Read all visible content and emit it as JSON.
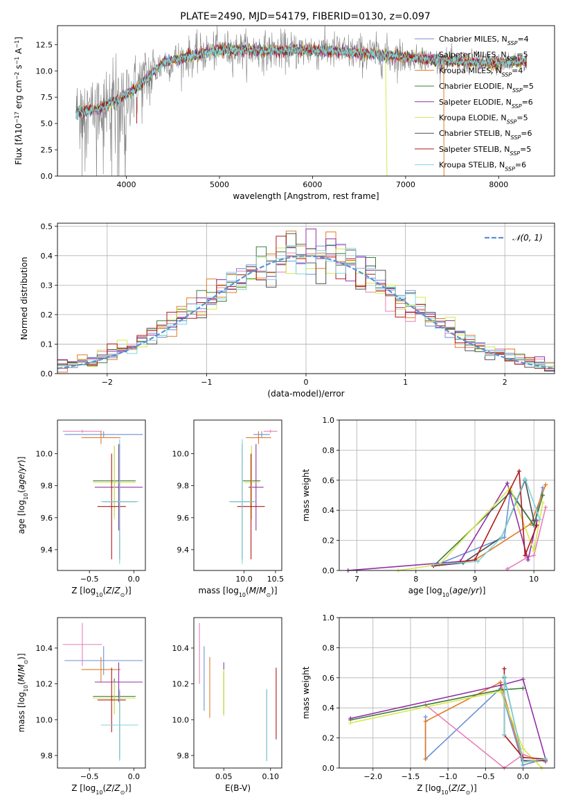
{
  "figure_title": "PLATE=2490, MJD=54179, FIBERID=0130, z=0.097",
  "colors": {
    "Chabrier MILES": "#6b8fd6",
    "Salpeter MILES": "#e87fb8",
    "Kroupa MILES": "#e07b25",
    "Chabrier ELODIE": "#3d7a3d",
    "Salpeter ELODIE": "#9230a8",
    "Kroupa ELODIE": "#d6e84a",
    "Chabrier STELIB": "#4d4d4d",
    "Salpeter STELIB": "#b01818",
    "Kroupa STELIB": "#7fd4d9",
    "normal": "#5b8fd6"
  },
  "chart_data": [
    {
      "id": "spectrum",
      "type": "line",
      "title": "PLATE=2490, MJD=54179, FIBERID=0130, z=0.097",
      "xlabel": "wavelength [Angstrom, rest frame]",
      "ylabel_html": "Flux [f<tspan font-style='italic'>λ</tspan>10<tspan baseline-shift='super' font-size='8'>−17</tspan> erg cm<tspan baseline-shift='super' font-size='8'>−2</tspan> s<tspan baseline-shift='super' font-size='8'>−1</tspan> A<tspan baseline-shift='super' font-size='8'>−1</tspan>]",
      "xlim": [
        3260,
        8600
      ],
      "ylim": [
        0,
        14.3
      ],
      "xticks": [
        4000,
        5000,
        6000,
        7000,
        8000
      ],
      "yticks": [
        0.0,
        2.5,
        5.0,
        7.5,
        10.0,
        12.5
      ],
      "ytick_labels": [
        "0.0",
        "2.5",
        "5.0",
        "7.5",
        "10.0",
        "12.5"
      ],
      "data_range": [
        3460,
        8300
      ],
      "continuum": [
        [
          3460,
          6.0
        ],
        [
          3700,
          6.4
        ],
        [
          3900,
          7.2
        ],
        [
          4100,
          8.3
        ],
        [
          4400,
          10.8
        ],
        [
          4700,
          11.4
        ],
        [
          5000,
          12.0
        ],
        [
          5500,
          11.9
        ],
        [
          6000,
          12.0
        ],
        [
          6500,
          11.7
        ],
        [
          7000,
          11.3
        ],
        [
          7500,
          10.9
        ],
        [
          8000,
          10.7
        ],
        [
          8300,
          10.9
        ]
      ],
      "legend": [
        {
          "label": "Chabrier MILES",
          "sub": "N<tspan baseline-shift='sub' font-size='8' font-style='italic'>SSP</tspan>=4"
        },
        {
          "label": "Salpeter MILES",
          "sub": "N<tspan baseline-shift='sub' font-size='8' font-style='italic'>SSP</tspan>=5"
        },
        {
          "label": "Kroupa MILES",
          "sub": "N<tspan baseline-shift='sub' font-size='8' font-style='italic'>SSP</tspan>=4"
        },
        {
          "label": "Chabrier ELODIE",
          "sub": "N<tspan baseline-shift='sub' font-size='8' font-style='italic'>SSP</tspan>=5"
        },
        {
          "label": "Salpeter ELODIE",
          "sub": "N<tspan baseline-shift='sub' font-size='8' font-style='italic'>SSP</tspan>=6"
        },
        {
          "label": "Kroupa ELODIE",
          "sub": "N<tspan baseline-shift='sub' font-size='8' font-style='italic'>SSP</tspan>=5"
        },
        {
          "label": "Chabrier STELIB",
          "sub": "N<tspan baseline-shift='sub' font-size='8' font-style='italic'>SSP</tspan>=6"
        },
        {
          "label": "Salpeter STELIB",
          "sub": "N<tspan baseline-shift='sub' font-size='8' font-style='italic'>SSP</tspan>=5"
        },
        {
          "label": "Kroupa STELIB",
          "sub": "N<tspan baseline-shift='sub' font-size='8' font-style='italic'>SSP</tspan>=6"
        }
      ]
    },
    {
      "id": "residuals",
      "type": "histogram",
      "xlabel": "(data-model)/error",
      "ylabel": "Normed distribution",
      "xlim": [
        -2.5,
        2.5
      ],
      "ylim": [
        0,
        0.51
      ],
      "xticks": [
        -2,
        -1,
        0,
        1,
        2
      ],
      "xtick_labels": [
        "−2",
        "−1",
        "0",
        "1",
        "2"
      ],
      "yticks": [
        0.0,
        0.1,
        0.2,
        0.3,
        0.4,
        0.5
      ],
      "ytick_labels": [
        "0.0",
        "0.1",
        "0.2",
        "0.3",
        "0.4",
        "0.5"
      ],
      "bin_width": 0.1,
      "legend_label": "𝒩(0, 1)",
      "grid": true
    },
    {
      "id": "age_vs_Z",
      "type": "errorbar",
      "xlabel": "Z [log<tspan baseline-shift='sub' font-size='8'>10</tspan>(<tspan font-style='italic'>Z</tspan>/<tspan font-style='italic'>Z</tspan><tspan baseline-shift='sub' font-size='8'>⊙</tspan>)]",
      "ylabel": "age  [log<tspan baseline-shift='sub' font-size='8'>10</tspan>(<tspan font-style='italic'>age</tspan>/<tspan font-style='italic'>yr</tspan>)]",
      "xlim": [
        -0.86,
        0.13
      ],
      "ylim": [
        9.27,
        10.21
      ],
      "xticks": [
        -0.5,
        0.0
      ],
      "xtick_labels": [
        "−0.5",
        "0.0"
      ],
      "yticks": [
        9.4,
        9.6,
        9.8,
        10.0
      ],
      "ytick_labels": [
        "9.4",
        "9.6",
        "9.8",
        "10.0"
      ],
      "points": [
        {
          "model": "Chabrier MILES",
          "x": -0.34,
          "xerr": 0.44,
          "y": 10.12,
          "yerr": 0.02
        },
        {
          "model": "Salpeter MILES",
          "x": -0.58,
          "xerr": 0.22,
          "y": 10.14,
          "yerr": 0.01
        },
        {
          "model": "Kroupa MILES",
          "x": -0.37,
          "xerr": 0.22,
          "y": 10.1,
          "yerr": 0.04
        },
        {
          "model": "Chabrier ELODIE",
          "x": -0.22,
          "xerr": 0.24,
          "y": 9.83,
          "yerr": 0.22
        },
        {
          "model": "Salpeter ELODIE",
          "x": -0.17,
          "xerr": 0.27,
          "y": 9.79,
          "yerr": 0.27
        },
        {
          "model": "Kroupa ELODIE",
          "x": -0.22,
          "xerr": 0.24,
          "y": 9.82,
          "yerr": 0.23
        },
        {
          "model": "Chabrier STELIB",
          "x": -0.16,
          "xerr": 0.19,
          "y": 9.7,
          "yerr": 0.36
        },
        {
          "model": "Salpeter STELIB",
          "x": -0.25,
          "xerr": 0.16,
          "y": 9.67,
          "yerr": 0.33
        },
        {
          "model": "Kroupa STELIB",
          "x": -0.16,
          "xerr": 0.21,
          "y": 9.7,
          "yerr": 0.39
        }
      ]
    },
    {
      "id": "age_vs_mass",
      "type": "errorbar",
      "xlabel": "mass [log<tspan baseline-shift='sub' font-size='8'>10</tspan>(<tspan font-style='italic'>M</tspan>/<tspan font-style='italic'>M</tspan><tspan baseline-shift='sub' font-size='8'>⊙</tspan>)]",
      "ylabel": "",
      "xlim": [
        9.2,
        10.6
      ],
      "ylim": [
        9.27,
        10.21
      ],
      "xticks": [
        10.0,
        10.5
      ],
      "xtick_labels": [
        "10.0",
        "10.5"
      ],
      "yticks": [
        9.4,
        9.6,
        9.8,
        10.0
      ],
      "ytick_labels": [
        "9.4",
        "9.6",
        "9.8",
        "10.0"
      ],
      "points": [
        {
          "model": "Chabrier MILES",
          "x": 10.28,
          "xerr": 0.13,
          "y": 10.12,
          "yerr": 0.02
        },
        {
          "model": "Salpeter MILES",
          "x": 10.42,
          "xerr": 0.11,
          "y": 10.14,
          "yerr": 0.01
        },
        {
          "model": "Kroupa MILES",
          "x": 10.23,
          "xerr": 0.2,
          "y": 10.1,
          "yerr": 0.04
        },
        {
          "model": "Chabrier ELODIE",
          "x": 10.12,
          "xerr": 0.14,
          "y": 9.83,
          "yerr": 0.22
        },
        {
          "model": "Salpeter ELODIE",
          "x": 10.19,
          "xerr": 0.12,
          "y": 9.79,
          "yerr": 0.27
        },
        {
          "model": "Kroupa ELODIE",
          "x": 10.12,
          "xerr": 0.12,
          "y": 9.82,
          "yerr": 0.23
        },
        {
          "model": "Chabrier STELIB",
          "x": 9.97,
          "xerr": 0.19,
          "y": 9.7,
          "yerr": 0.36
        },
        {
          "model": "Salpeter STELIB",
          "x": 10.11,
          "xerr": 0.22,
          "y": 9.67,
          "yerr": 0.33
        },
        {
          "model": "Kroupa STELIB",
          "x": 9.97,
          "xerr": 0.21,
          "y": 9.7,
          "yerr": 0.39
        }
      ]
    },
    {
      "id": "mass_vs_Z",
      "type": "errorbar",
      "xlabel": "Z [log<tspan baseline-shift='sub' font-size='8'>10</tspan>(<tspan font-style='italic'>Z</tspan>/<tspan font-style='italic'>Z</tspan><tspan baseline-shift='sub' font-size='8'>⊙</tspan>)]",
      "ylabel": "mass [log<tspan baseline-shift='sub' font-size='8'>10</tspan>(<tspan font-style='italic'>M</tspan>/<tspan font-style='italic'>M</tspan><tspan baseline-shift='sub' font-size='8'>⊙</tspan>)]",
      "xlim": [
        -0.86,
        0.13
      ],
      "ylim": [
        9.73,
        10.57
      ],
      "xticks": [
        -0.5,
        0.0
      ],
      "xtick_labels": [
        "−0.5",
        "0.0"
      ],
      "yticks": [
        9.8,
        10.0,
        10.2,
        10.4
      ],
      "ytick_labels": [
        "9.8",
        "10.0",
        "10.2",
        "10.4"
      ],
      "points": [
        {
          "model": "Chabrier MILES",
          "x": -0.34,
          "xerr": 0.44,
          "y": 10.33,
          "yerr": 0.08
        },
        {
          "model": "Salpeter MILES",
          "x": -0.58,
          "xerr": 0.22,
          "y": 10.42,
          "yerr": 0.12
        },
        {
          "model": "Kroupa MILES",
          "x": -0.37,
          "xerr": 0.22,
          "y": 10.28,
          "yerr": 0.07
        },
        {
          "model": "Chabrier ELODIE",
          "x": -0.22,
          "xerr": 0.24,
          "y": 10.13,
          "yerr": 0.1
        },
        {
          "model": "Salpeter ELODIE",
          "x": -0.17,
          "xerr": 0.27,
          "y": 10.21,
          "yerr": 0.11
        },
        {
          "model": "Kroupa ELODIE",
          "x": -0.22,
          "xerr": 0.24,
          "y": 10.12,
          "yerr": 0.09
        },
        {
          "model": "Chabrier STELIB",
          "x": -0.16,
          "xerr": 0.19,
          "y": 9.97,
          "yerr": 0.19
        },
        {
          "model": "Salpeter STELIB",
          "x": -0.25,
          "xerr": 0.16,
          "y": 10.11,
          "yerr": 0.18
        },
        {
          "model": "Kroupa STELIB",
          "x": -0.16,
          "xerr": 0.21,
          "y": 9.97,
          "yerr": 0.2
        }
      ]
    },
    {
      "id": "mass_vs_ebv",
      "type": "errorbar",
      "xlabel": "E(B-V)",
      "ylabel": "",
      "xlim": [
        0.018,
        0.112
      ],
      "ylim": [
        9.73,
        10.57
      ],
      "xticks": [
        0.05,
        0.1
      ],
      "xtick_labels": [
        "0.05",
        "0.10"
      ],
      "yticks": [
        9.8,
        10.0,
        10.2,
        10.4
      ],
      "ytick_labels": [
        "9.8",
        "10.0",
        "10.2",
        "10.4"
      ],
      "points": [
        {
          "model": "Chabrier MILES",
          "x": 0.029,
          "xerr": 0,
          "y": 10.23,
          "yerr": 0.18
        },
        {
          "model": "Salpeter MILES",
          "x": 0.024,
          "xerr": 0,
          "y": 10.37,
          "yerr": 0.17
        },
        {
          "model": "Kroupa MILES",
          "x": 0.035,
          "xerr": 0,
          "y": 10.18,
          "yerr": 0.17
        },
        {
          "model": "Chabrier ELODIE",
          "x": 0.05,
          "xerr": 0,
          "y": 10.15,
          "yerr": 0.12
        },
        {
          "model": "Salpeter ELODIE",
          "x": 0.05,
          "xerr": 0,
          "y": 10.3,
          "yerr": 0.02
        },
        {
          "model": "Kroupa ELODIE",
          "x": 0.05,
          "xerr": 0,
          "y": 10.15,
          "yerr": 0.13
        },
        {
          "model": "Chabrier STELIB",
          "x": 0.096,
          "xerr": 0,
          "y": 9.97,
          "yerr": 0.2
        },
        {
          "model": "Salpeter STELIB",
          "x": 0.106,
          "xerr": 0,
          "y": 10.09,
          "yerr": 0.2
        },
        {
          "model": "Kroupa STELIB",
          "x": 0.096,
          "xerr": 0,
          "y": 9.97,
          "yerr": 0.2
        }
      ]
    },
    {
      "id": "weight_vs_age",
      "type": "line",
      "xlabel": "age  [log<tspan baseline-shift='sub' font-size='8'>10</tspan>(<tspan font-style='italic'>age</tspan>/<tspan font-style='italic'>yr</tspan>)]",
      "ylabel": "mass weight",
      "xlim": [
        6.7,
        10.35
      ],
      "ylim": [
        0,
        1.0
      ],
      "xticks": [
        7,
        8,
        9,
        10
      ],
      "xtick_labels": [
        "7",
        "8",
        "9",
        "10"
      ],
      "yticks": [
        0.0,
        0.2,
        0.4,
        0.6,
        0.8,
        1.0
      ],
      "ytick_labels": [
        "0.0",
        "0.2",
        "0.4",
        "0.6",
        "0.8",
        "1.0"
      ],
      "grid": true,
      "series": [
        {
          "model": "Chabrier MILES",
          "x": [
            8.3,
            9.5,
            9.6,
            10.0,
            10.15
          ],
          "y": [
            0.03,
            0.22,
            0.53,
            0.3,
            0.55
          ]
        },
        {
          "model": "Salpeter MILES",
          "x": [
            9.55,
            9.9,
            10.0,
            10.2
          ],
          "y": [
            0.01,
            0.09,
            0.1,
            0.42
          ]
        },
        {
          "model": "Kroupa MILES",
          "x": [
            8.3,
            9.0,
            9.95,
            10.2
          ],
          "y": [
            0.04,
            0.07,
            0.31,
            0.57
          ]
        },
        {
          "model": "Chabrier ELODIE",
          "x": [
            8.3,
            9.6,
            10.0,
            10.15
          ],
          "y": [
            0.03,
            0.52,
            0.3,
            0.5
          ]
        },
        {
          "model": "Salpeter ELODIE",
          "x": [
            6.85,
            8.75,
            9.55,
            9.9,
            10.05
          ],
          "y": [
            0.0,
            0.06,
            0.58,
            0.07,
            0.33
          ]
        },
        {
          "model": "Kroupa ELODIE",
          "x": [
            7.7,
            8.4,
            9.6,
            10.0,
            10.15
          ],
          "y": [
            0.0,
            0.04,
            0.55,
            0.13,
            0.45
          ]
        },
        {
          "model": "Chabrier STELIB",
          "x": [
            8.3,
            8.8,
            9.45,
            9.85,
            10.0
          ],
          "y": [
            0.03,
            0.05,
            0.22,
            0.6,
            0.33
          ]
        },
        {
          "model": "Salpeter STELIB",
          "x": [
            8.3,
            9.0,
            9.75,
            9.85,
            10.05
          ],
          "y": [
            0.03,
            0.07,
            0.66,
            0.1,
            0.3
          ]
        },
        {
          "model": "Kroupa STELIB",
          "x": [
            8.3,
            9.05,
            9.45,
            9.85,
            10.1
          ],
          "y": [
            0.04,
            0.06,
            0.22,
            0.61,
            0.34
          ]
        }
      ]
    },
    {
      "id": "weight_vs_Z",
      "type": "line",
      "xlabel": "Z [log<tspan baseline-shift='sub' font-size='8'>10</tspan>(<tspan font-style='italic'>Z</tspan>/<tspan font-style='italic'>Z</tspan><tspan baseline-shift='sub' font-size='8'>⊙</tspan>)]",
      "ylabel": "mass weight",
      "xlim": [
        -2.45,
        0.42
      ],
      "ylim": [
        0,
        1.0
      ],
      "xticks": [
        -2.0,
        -1.5,
        -1.0,
        -0.5,
        0.0
      ],
      "xtick_labels": [
        "−2.0",
        "−1.5",
        "−1.0",
        "−0.5",
        "0.0"
      ],
      "yticks": [
        0.0,
        0.2,
        0.4,
        0.6,
        0.8,
        1.0
      ],
      "ytick_labels": [
        "0.0",
        "0.2",
        "0.4",
        "0.6",
        "0.8",
        "1.0"
      ],
      "grid": true,
      "series": [
        {
          "model": "Chabrier MILES",
          "x": [
            -1.3,
            -1.3,
            -0.3,
            0.0,
            0.3
          ],
          "y": [
            0.34,
            0.06,
            0.53,
            0.02,
            0.06
          ]
        },
        {
          "model": "Salpeter MILES",
          "x": [
            -1.3,
            -0.25,
            0.0,
            0.3
          ],
          "y": [
            0.42,
            0.0,
            0.09,
            0.04
          ]
        },
        {
          "model": "Kroupa MILES",
          "x": [
            -1.3,
            -1.3,
            -0.3,
            0.0,
            0.3
          ],
          "y": [
            0.06,
            0.31,
            0.57,
            0.04,
            0.05
          ]
        },
        {
          "model": "Chabrier ELODIE",
          "x": [
            -2.3,
            -0.3,
            0.0
          ],
          "y": [
            0.32,
            0.52,
            0.53
          ]
        },
        {
          "model": "Salpeter ELODIE",
          "x": [
            -2.3,
            -0.3,
            0.0,
            0.3
          ],
          "y": [
            0.33,
            0.55,
            0.59,
            0.06
          ]
        },
        {
          "model": "Kroupa ELODIE",
          "x": [
            -2.3,
            -0.3,
            0.0,
            0.25
          ],
          "y": [
            0.3,
            0.51,
            0.13,
            0.0
          ]
        },
        {
          "model": "Chabrier STELIB",
          "x": [
            -0.25,
            -0.25,
            0.0,
            0.3
          ],
          "y": [
            0.22,
            0.6,
            0.05,
            0.05
          ]
        },
        {
          "model": "Salpeter STELIB",
          "x": [
            -0.25,
            -0.25,
            0.0,
            0.3
          ],
          "y": [
            0.66,
            0.22,
            0.07,
            0.06
          ]
        },
        {
          "model": "Kroupa STELIB",
          "x": [
            -0.25,
            -0.25,
            0.0,
            0.3
          ],
          "y": [
            0.22,
            0.61,
            0.04,
            0.06
          ]
        }
      ]
    }
  ]
}
